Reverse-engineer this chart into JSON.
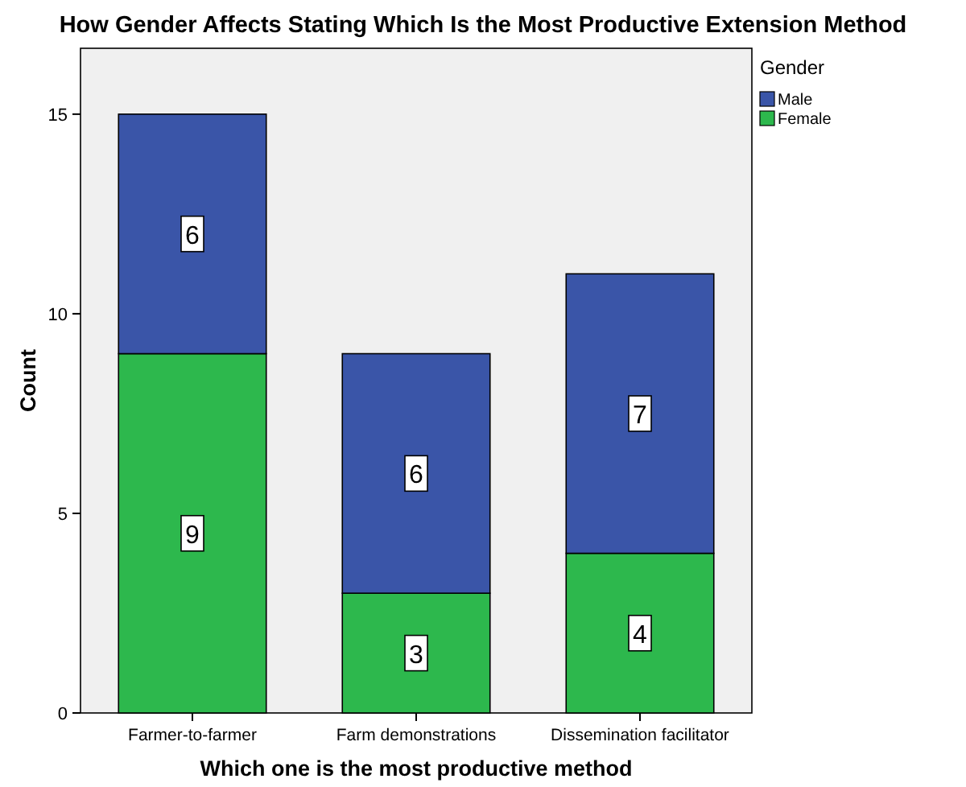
{
  "chart_data": {
    "type": "bar",
    "title": "How Gender Affects Stating Which Is the Most Productive Extension Method",
    "xlabel": "Which one is the most productive method",
    "ylabel": "Count",
    "legend_title": "Gender",
    "categories": [
      "Farmer-to-farmer",
      "Farm demonstrations",
      "Dissemination facilitator"
    ],
    "series": [
      {
        "name": "Female",
        "color": "#2db84d",
        "values": [
          9,
          3,
          4
        ]
      },
      {
        "name": "Male",
        "color": "#3a55a8",
        "values": [
          6,
          6,
          7
        ]
      }
    ],
    "stacked": true,
    "ylim": [
      0,
      16.65
    ],
    "yticks": [
      0,
      5,
      10,
      15
    ],
    "data_labels": true,
    "legend": "top right",
    "grid": false
  }
}
